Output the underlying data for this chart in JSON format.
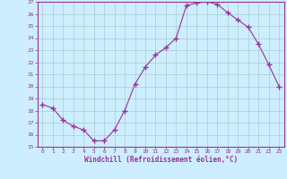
{
  "x": [
    0,
    1,
    2,
    3,
    4,
    5,
    6,
    7,
    8,
    9,
    10,
    11,
    12,
    13,
    14,
    15,
    16,
    17,
    18,
    19,
    20,
    21,
    22,
    23
  ],
  "y": [
    18.5,
    18.2,
    17.2,
    16.7,
    16.4,
    15.5,
    15.5,
    16.4,
    18.0,
    20.2,
    21.6,
    22.6,
    23.2,
    24.0,
    26.7,
    26.9,
    27.0,
    26.8,
    26.1,
    25.5,
    24.9,
    23.5,
    21.8,
    20.0
  ],
  "xlabel": "Windchill (Refroidissement éolien,°C)",
  "ylim": [
    15,
    27
  ],
  "xlim_min": -0.5,
  "xlim_max": 23.5,
  "yticks": [
    15,
    16,
    17,
    18,
    19,
    20,
    21,
    22,
    23,
    24,
    25,
    26,
    27
  ],
  "xticks": [
    0,
    1,
    2,
    3,
    4,
    5,
    6,
    7,
    8,
    9,
    10,
    11,
    12,
    13,
    14,
    15,
    16,
    17,
    18,
    19,
    20,
    21,
    22,
    23
  ],
  "line_color": "#993399",
  "marker_color": "#993399",
  "bg_color": "#cceeff",
  "grid_color": "#aacccc",
  "axis_color": "#993399",
  "tick_color": "#993399",
  "label_color": "#993399"
}
